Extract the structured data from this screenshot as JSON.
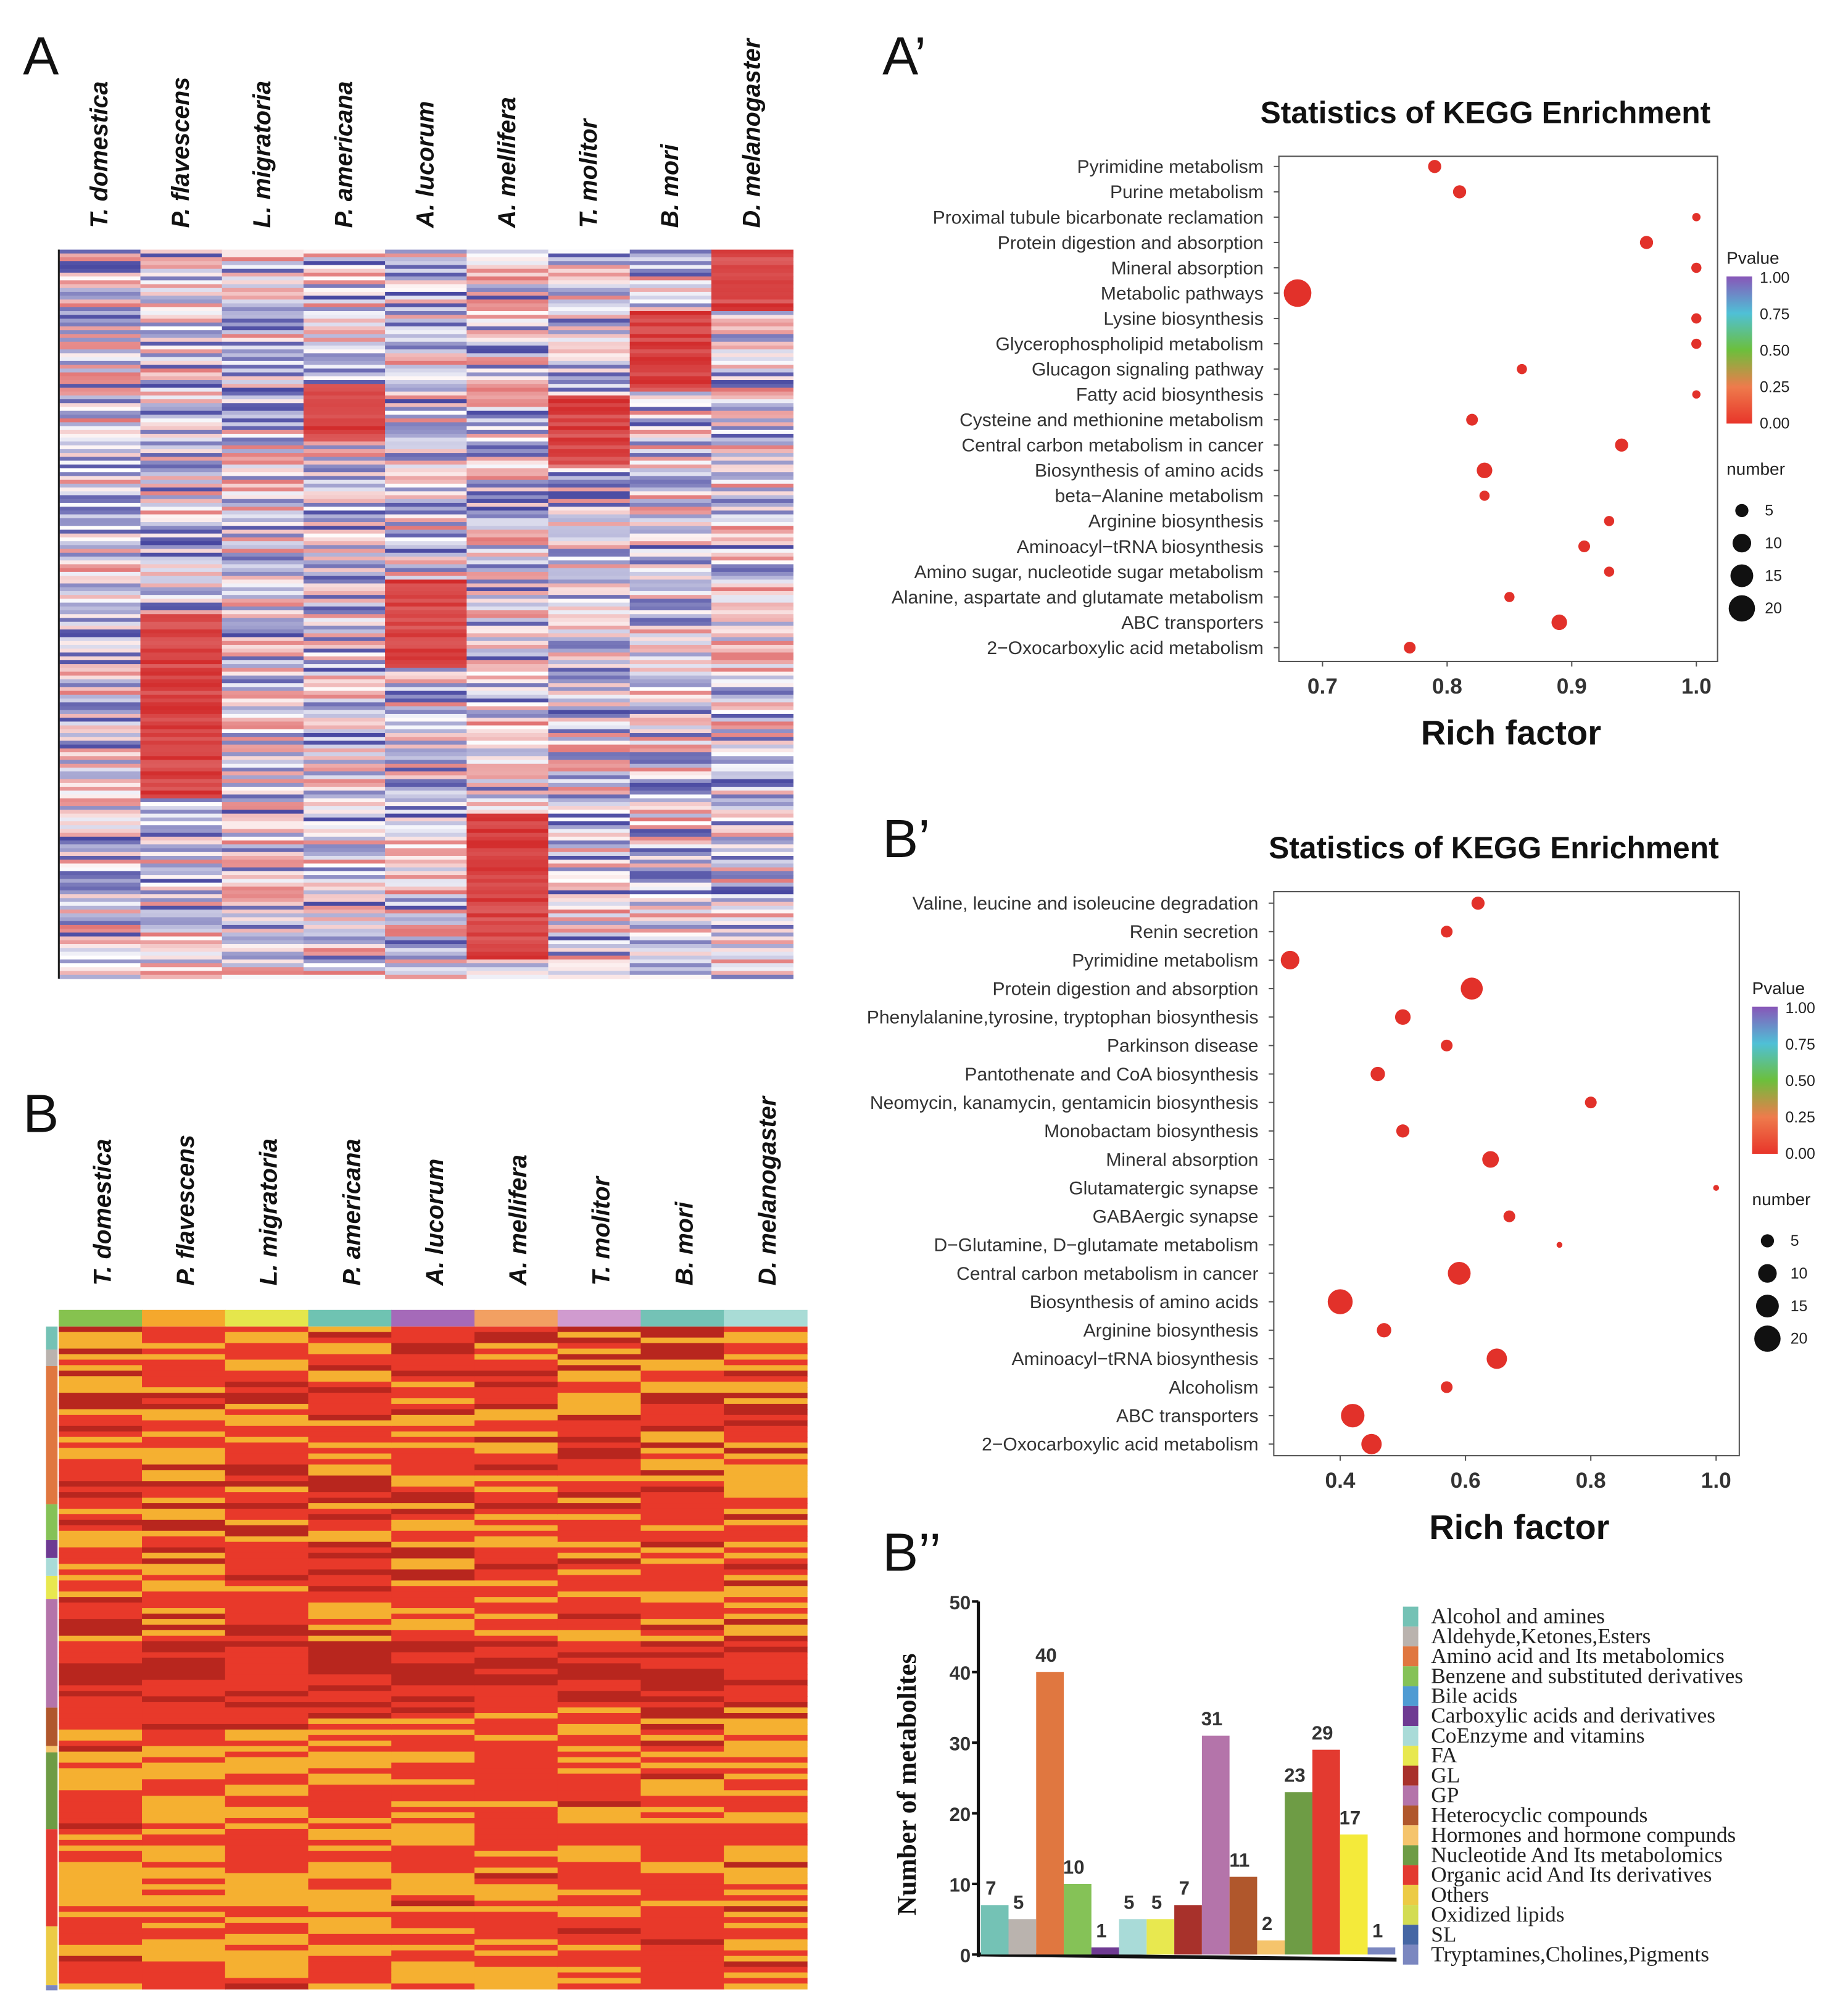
{
  "panels": {
    "A": "A",
    "A_prime": "A’",
    "B": "B",
    "B_prime": "B’",
    "B_double_prime": "B’’"
  },
  "species": [
    "T. domestica",
    "P. flavescens",
    "L. migratoria",
    "P. americana",
    "A. lucorum",
    "A. mellifera",
    "T. molitor",
    "B. mori",
    "D. melanogaster"
  ],
  "colors": {
    "dot": "#e2312a",
    "heat_low": "#3a3a9a",
    "heat_mid": "#ffffff",
    "heat_high": "#d22a2a",
    "heatB_low": "#f5b031",
    "heatB_mid": "#e8392a",
    "heatB_high": "#b8261e",
    "heatB_top_annotation": [
      "#86c24f",
      "#f5a82d",
      "#e5e64c",
      "#6fc3b2",
      "#a56ab9",
      "#f2a062",
      "#d09bcf",
      "#74c2b6",
      "#a9dcd6"
    ]
  },
  "chart_data": [
    {
      "id": "A_prime",
      "type": "scatter",
      "title": "Statistics of KEGG Enrichment",
      "xlabel": "Rich factor",
      "xlim": [
        0.665,
        1.017
      ],
      "xticks": [
        "0.7",
        "0.8",
        "0.9",
        "1.0"
      ],
      "xtick_values": [
        0.7,
        0.8,
        0.9,
        1.0
      ],
      "legend_color_title": "Pvalue",
      "legend_color_ticks": [
        "1.00",
        "0.75",
        "0.50",
        "0.25",
        "0.00"
      ],
      "legend_size_title": "number",
      "legend_size_ticks": [
        5,
        10,
        15,
        20
      ],
      "points": [
        {
          "term": "Pyrimidine metabolism",
          "rich": 0.79,
          "number": 5,
          "pvalue": 0.02
        },
        {
          "term": "Purine metabolism",
          "rich": 0.81,
          "number": 5,
          "pvalue": 0.02
        },
        {
          "term": "Proximal tubule bicarbonate reclamation",
          "rich": 1.0,
          "number": 2,
          "pvalue": 0.03
        },
        {
          "term": "Protein digestion and absorption",
          "rich": 0.96,
          "number": 5,
          "pvalue": 0.02
        },
        {
          "term": "Mineral absorption",
          "rich": 1.0,
          "number": 3,
          "pvalue": 0.02
        },
        {
          "term": "Metabolic pathways",
          "rich": 0.68,
          "number": 22,
          "pvalue": 0.01
        },
        {
          "term": "Lysine biosynthesis",
          "rich": 1.0,
          "number": 3,
          "pvalue": 0.02
        },
        {
          "term": "Glycerophospholipid metabolism",
          "rich": 1.0,
          "number": 3,
          "pvalue": 0.02
        },
        {
          "term": "Glucagon signaling pathway",
          "rich": 0.86,
          "number": 3,
          "pvalue": 0.03
        },
        {
          "term": "Fatty acid biosynthesis",
          "rich": 1.0,
          "number": 2,
          "pvalue": 0.03
        },
        {
          "term": "Cysteine and methionine metabolism",
          "rich": 0.82,
          "number": 4,
          "pvalue": 0.02
        },
        {
          "term": "Central carbon metabolism in cancer",
          "rich": 0.94,
          "number": 5,
          "pvalue": 0.02
        },
        {
          "term": "Biosynthesis of amino acids",
          "rich": 0.83,
          "number": 7,
          "pvalue": 0.01
        },
        {
          "term": "beta−Alanine metabolism",
          "rich": 0.83,
          "number": 3,
          "pvalue": 0.02
        },
        {
          "term": "Arginine biosynthesis",
          "rich": 0.93,
          "number": 3,
          "pvalue": 0.02
        },
        {
          "term": "Aminoacyl−tRNA biosynthesis",
          "rich": 0.91,
          "number": 4,
          "pvalue": 0.02
        },
        {
          "term": "Amino sugar, nucleotide sugar metabolism",
          "rich": 0.93,
          "number": 3,
          "pvalue": 0.02
        },
        {
          "term": "Alanine, aspartate and glutamate metabolism",
          "rich": 0.85,
          "number": 3,
          "pvalue": 0.02
        },
        {
          "term": "ABC transporters",
          "rich": 0.89,
          "number": 7,
          "pvalue": 0.01
        },
        {
          "term": "2−Oxocarboxylic acid metabolism",
          "rich": 0.77,
          "number": 4,
          "pvalue": 0.02
        }
      ]
    },
    {
      "id": "B_prime",
      "type": "scatter",
      "title": "Statistics of KEGG Enrichment",
      "xlabel": "Rich factor",
      "xlim": [
        0.294,
        1.037
      ],
      "xticks": [
        "0.4",
        "0.6",
        "0.8",
        "1.0"
      ],
      "xtick_values": [
        0.4,
        0.6,
        0.8,
        1.0
      ],
      "legend_color_title": "Pvalue",
      "legend_color_ticks": [
        "1.00",
        "0.75",
        "0.50",
        "0.25",
        "0.00"
      ],
      "legend_size_title": "number",
      "legend_size_ticks": [
        5,
        10,
        15,
        20
      ],
      "points": [
        {
          "term": "Valine, leucine and isoleucine degradation",
          "rich": 0.62,
          "number": 5,
          "pvalue": 0.02
        },
        {
          "term": "Renin secretion",
          "rich": 0.57,
          "number": 4,
          "pvalue": 0.02
        },
        {
          "term": "Pyrimidine metabolism",
          "rich": 0.32,
          "number": 10,
          "pvalue": 0.01
        },
        {
          "term": "Protein digestion and absorption",
          "rich": 0.61,
          "number": 14,
          "pvalue": 0.01
        },
        {
          "term": "Phenylalanine,tyrosine, tryptophan biosynthesis",
          "rich": 0.5,
          "number": 7,
          "pvalue": 0.01
        },
        {
          "term": "Parkinson disease",
          "rich": 0.57,
          "number": 4,
          "pvalue": 0.02
        },
        {
          "term": "Pantothenate and CoA biosynthesis",
          "rich": 0.46,
          "number": 6,
          "pvalue": 0.01
        },
        {
          "term": "Neomycin, kanamycin, gentamicin biosynthesis",
          "rich": 0.8,
          "number": 4,
          "pvalue": 0.02
        },
        {
          "term": "Monobactam biosynthesis",
          "rich": 0.5,
          "number": 5,
          "pvalue": 0.01
        },
        {
          "term": "Mineral absorption",
          "rich": 0.64,
          "number": 8,
          "pvalue": 0.01
        },
        {
          "term": "Glutamatergic synapse",
          "rich": 1.0,
          "number": 1,
          "pvalue": 0.03
        },
        {
          "term": "GABAergic synapse",
          "rich": 0.67,
          "number": 4,
          "pvalue": 0.02
        },
        {
          "term": "D−Glutamine, D−glutamate metabolism",
          "rich": 0.75,
          "number": 1,
          "pvalue": 0.03
        },
        {
          "term": "Central carbon metabolism in cancer",
          "rich": 0.59,
          "number": 15,
          "pvalue": 0.01
        },
        {
          "term": "Biosynthesis of amino acids",
          "rich": 0.4,
          "number": 18,
          "pvalue": 0.01
        },
        {
          "term": "Arginine biosynthesis",
          "rich": 0.47,
          "number": 6,
          "pvalue": 0.01
        },
        {
          "term": "Aminoacyl−tRNA biosynthesis",
          "rich": 0.65,
          "number": 12,
          "pvalue": 0.01
        },
        {
          "term": "Alcoholism",
          "rich": 0.57,
          "number": 4,
          "pvalue": 0.02
        },
        {
          "term": "ABC transporters",
          "rich": 0.42,
          "number": 16,
          "pvalue": 0.01
        },
        {
          "term": "2−Oxocarboxylic acid metabolism",
          "rich": 0.45,
          "number": 12,
          "pvalue": 0.01
        }
      ]
    },
    {
      "id": "B_double_prime",
      "type": "bar",
      "ylabel": "Number of metabolites",
      "ylim": [
        0,
        50
      ],
      "yticks": [
        "0",
        "10",
        "20",
        "30",
        "40",
        "50"
      ],
      "ytick_values": [
        0,
        10,
        20,
        30,
        40,
        50
      ],
      "bars": [
        {
          "category": "Alcohol and amines",
          "value": 7,
          "color": "#74c2b5"
        },
        {
          "category": "Aldehyde,Ketones,Esters",
          "value": 5,
          "color": "#bab3ae"
        },
        {
          "category": "Amino acid  and Its metabolomics",
          "value": 40,
          "color": "#e07740"
        },
        {
          "category": "Benzene and substituted derivatives",
          "value": 10,
          "color": "#85c257"
        },
        {
          "category": "Carboxylic acids and derivatives",
          "value": 1,
          "color": "#6e3a92"
        },
        {
          "category": "CoEnzyme and vitamins",
          "value": 5,
          "color": "#a9dbd8"
        },
        {
          "category": "FA",
          "value": 5,
          "color": "#e8e84f"
        },
        {
          "category": "GL",
          "value": 7,
          "color": "#a8312b"
        },
        {
          "category": "GP",
          "value": 31,
          "color": "#b474aa"
        },
        {
          "category": "Heterocyclic compounds",
          "value": 11,
          "color": "#b0572c"
        },
        {
          "category": "Hormones and hormone compunds",
          "value": 2,
          "color": "#f5c46c"
        },
        {
          "category": "Nucleotide And  Its metabolomics",
          "value": 23,
          "color": "#6e9c45"
        },
        {
          "category": "Organic acid And  Its derivatives",
          "value": 29,
          "color": "#e33a30"
        },
        {
          "category": "Others",
          "value": 17,
          "color": "#f4ea3a"
        },
        {
          "category": "Tryptamines,Cholines,Pigments",
          "value": 1,
          "color": "#7b87c0"
        }
      ],
      "legend": [
        {
          "label": "Alcohol and amines",
          "color": "#74c2b5",
          "highlight": false
        },
        {
          "label": "Aldehyde,Ketones,Esters",
          "color": "#bab3ae",
          "highlight": false
        },
        {
          "label": "Amino acid  and Its metabolomics",
          "color": "#e07740",
          "highlight": true
        },
        {
          "label": "Benzene and substituted derivatives",
          "color": "#85c257",
          "highlight": false
        },
        {
          "label": "Bile acids",
          "color": "#4f9bd3",
          "highlight": false
        },
        {
          "label": "Carboxylic acids and derivatives",
          "color": "#6e3a92",
          "highlight": false
        },
        {
          "label": "CoEnzyme and vitamins",
          "color": "#a9dbd8",
          "highlight": false
        },
        {
          "label": "FA",
          "color": "#e8e84f",
          "highlight": false
        },
        {
          "label": "GL",
          "color": "#a8312b",
          "highlight": false
        },
        {
          "label": "GP",
          "color": "#b474aa",
          "highlight": true
        },
        {
          "label": "Heterocyclic compounds",
          "color": "#b0572c",
          "highlight": false
        },
        {
          "label": "Hormones and hormone compunds",
          "color": "#f5c46c",
          "highlight": false
        },
        {
          "label": "Nucleotide And  Its metabolomics",
          "color": "#6e9c45",
          "highlight": true
        },
        {
          "label": "Organic acid And  Its derivatives",
          "color": "#e33a30",
          "highlight": true
        },
        {
          "label": "Others",
          "color": "#eccb45",
          "highlight": false
        },
        {
          "label": "Oxidized lipids",
          "color": "#d3dc52",
          "highlight": false
        },
        {
          "label": "SL",
          "color": "#4566a4",
          "highlight": false
        },
        {
          "label": "Tryptamines,Cholines,Pigments",
          "color": "#7b87c0",
          "highlight": false
        }
      ]
    },
    {
      "id": "A_heatmap",
      "type": "heatmap",
      "columns_ref": "species"
    },
    {
      "id": "B_heatmap",
      "type": "heatmap",
      "columns_ref": "species"
    }
  ]
}
